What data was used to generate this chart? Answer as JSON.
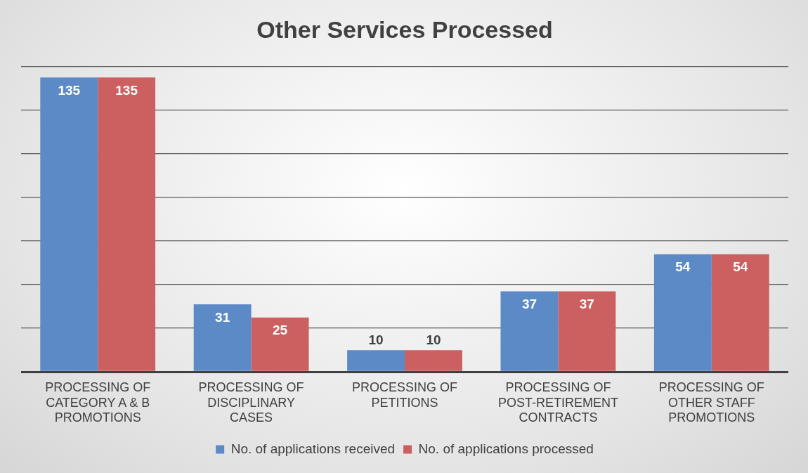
{
  "chart_data": {
    "type": "bar",
    "title": "Other Services Processed",
    "categories": [
      "PROCESSING OF CATEGORY A & B PROMOTIONS",
      "PROCESSING OF DISCIPLINARY CASES",
      "PROCESSING OF PETITIONS",
      "PROCESSING OF POST-RETIREMENT CONTRACTS",
      "PROCESSING OF OTHER STAFF PROMOTIONS"
    ],
    "series": [
      {
        "name": "No. of applications received",
        "color": "#5b8ac6",
        "values": [
          135,
          31,
          10,
          37,
          54
        ]
      },
      {
        "name": "No. of applications processed",
        "color": "#cc5f5f",
        "values": [
          135,
          25,
          10,
          37,
          54
        ]
      }
    ],
    "tick_labels": "x",
    "grid": "y",
    "legend": "bottom",
    "data_labels": true
  }
}
